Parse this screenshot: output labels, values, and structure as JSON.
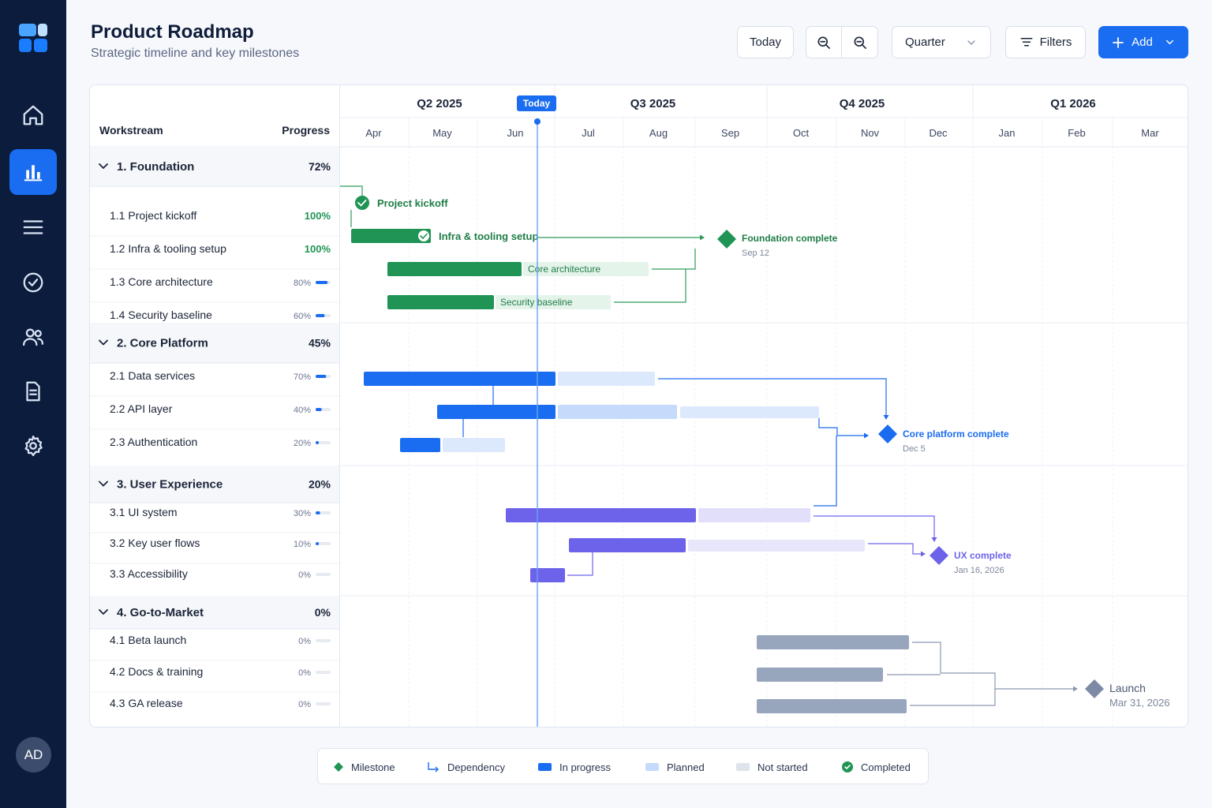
{
  "app": {
    "title": "Product Roadmap",
    "subtitle": "Strategic timeline and key milestones"
  },
  "sidebar": {
    "items": [
      {
        "name": "home-icon",
        "active": false
      },
      {
        "name": "chart-icon",
        "active": true
      },
      {
        "name": "list-icon",
        "active": false
      },
      {
        "name": "check-circle-icon",
        "active": false
      },
      {
        "name": "users-icon",
        "active": false
      },
      {
        "name": "document-icon",
        "active": false
      },
      {
        "name": "settings-icon",
        "active": false
      }
    ],
    "avatar": "AD"
  },
  "toolbar": {
    "today": "Today",
    "zoom_in_icon": "zoom-in-icon",
    "zoom_out_icon": "zoom-out-icon",
    "period": "Quarter",
    "filters": "Filters",
    "add": "Add"
  },
  "colors": {
    "accent": "#1a6cf0",
    "green": "#1f9455",
    "blue": "#1a6cf0",
    "purple": "#6c63ea",
    "gray": "#98a6bd",
    "navy": "#0b1c3d"
  },
  "timeline": {
    "headers": {
      "workstream": "Workstream",
      "progress": "Progress"
    },
    "today_label": "Today",
    "today_date": "2025-06-15",
    "quarters": [
      "Q2 2025",
      "Q3 2025",
      "Q4 2025",
      "Q1 2026"
    ],
    "months": [
      "Apr",
      "May",
      "Jun",
      "Jul",
      "Aug",
      "Sep",
      "Oct",
      "Nov",
      "Dec",
      "Jan",
      "Feb",
      "Mar"
    ]
  },
  "groups": [
    {
      "label": "1. Foundation",
      "progress": "72%",
      "color": "green",
      "tasks": [
        {
          "id": "1.1",
          "name": "Project kickoff",
          "progress": "100%",
          "done": true
        },
        {
          "id": "1.2",
          "name": "Infra & tooling setup",
          "progress": "100%",
          "done": true
        },
        {
          "id": "1.3",
          "name": "Core architecture",
          "progress": "80%",
          "done": false
        },
        {
          "id": "1.4",
          "name": "Security baseline",
          "progress": "60%",
          "done": false
        }
      ]
    },
    {
      "label": "2. Core Platform",
      "progress": "45%",
      "color": "blue",
      "tasks": [
        {
          "id": "2.1",
          "name": "Data services",
          "progress": "70%"
        },
        {
          "id": "2.2",
          "name": "API layer",
          "progress": "40%"
        },
        {
          "id": "2.3",
          "name": "Authentication",
          "progress": "20%"
        }
      ]
    },
    {
      "label": "3. User Experience",
      "progress": "20%",
      "color": "purple",
      "tasks": [
        {
          "id": "3.1",
          "name": "UI system",
          "progress": "30%"
        },
        {
          "id": "3.2",
          "name": "Key user flows",
          "progress": "10%"
        },
        {
          "id": "3.3",
          "name": "Accessibility",
          "progress": "0%"
        }
      ]
    },
    {
      "label": "4. Go-to-Market",
      "progress": "0%",
      "color": "gray",
      "tasks": [
        {
          "id": "4.1",
          "name": "Beta launch",
          "progress": "0%"
        },
        {
          "id": "4.2",
          "name": "Docs & training",
          "progress": "0%"
        },
        {
          "id": "4.3",
          "name": "GA release",
          "progress": "0%"
        }
      ]
    }
  ],
  "bar_labels": {
    "kickoff": "Project kickoff",
    "infra": "Infra & tooling setup",
    "core_arch": "Core architecture",
    "security": "Security baseline"
  },
  "milestones": [
    {
      "label": "Foundation complete",
      "date": "Sep 12",
      "color": "green"
    },
    {
      "label": "Core platform complete",
      "date": "Dec 5",
      "color": "blue"
    },
    {
      "label": "UX complete",
      "date": "Jan 16, 2026",
      "color": "purple"
    },
    {
      "label": "Launch",
      "date": "Mar 31, 2026",
      "color": "gray"
    }
  ],
  "legend": [
    "Milestone",
    "Dependency",
    "In progress",
    "Planned",
    "Not started",
    "Completed"
  ]
}
